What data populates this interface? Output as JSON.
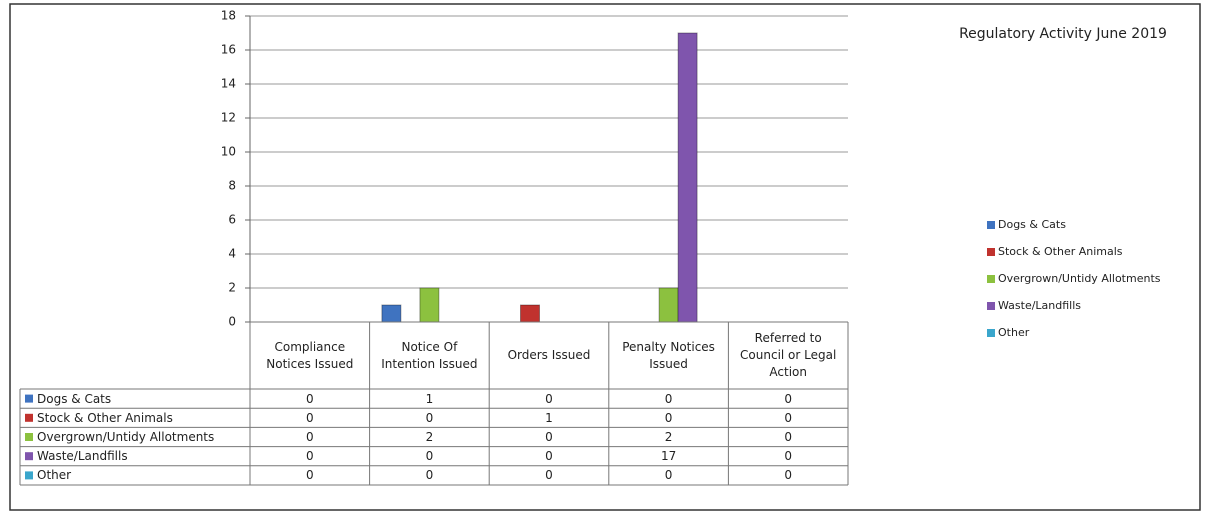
{
  "chart_data": {
    "type": "bar",
    "title": "Regulatory Activity June 2019",
    "categories": [
      "Compliance Notices Issued",
      "Notice Of Intention Issued",
      "Orders Issued",
      "Penalty Notices Issued",
      "Referred to Council or Legal Action"
    ],
    "series": [
      {
        "name": "Dogs & Cats",
        "color": "#3f73c0",
        "values": [
          0,
          1,
          0,
          0,
          0
        ]
      },
      {
        "name": "Stock & Other Animals",
        "color": "#c0322e",
        "values": [
          0,
          0,
          1,
          0,
          0
        ]
      },
      {
        "name": "Overgrown/Untidy Allotments",
        "color": "#8cc13f",
        "values": [
          0,
          2,
          0,
          2,
          0
        ]
      },
      {
        "name": "Waste/Landfills",
        "color": "#7f55ad",
        "values": [
          0,
          0,
          0,
          17,
          0
        ]
      },
      {
        "name": "Other",
        "color": "#3aa6cc",
        "values": [
          0,
          0,
          0,
          0,
          0
        ]
      }
    ],
    "ylim": [
      0,
      18
    ],
    "yticks": [
      0,
      2,
      4,
      6,
      8,
      10,
      12,
      14,
      16,
      18
    ],
    "grid": true,
    "legend": "right"
  }
}
